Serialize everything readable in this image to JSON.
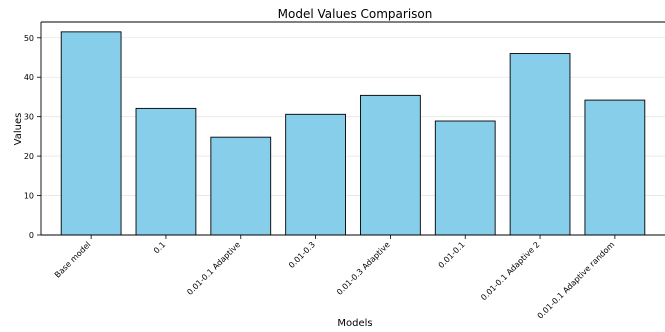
{
  "chart_data": {
    "type": "bar",
    "title": "Model Values Comparison",
    "xlabel": "Models",
    "ylabel": "Values",
    "categories": [
      "Base model",
      "0.1",
      "0.01-0.1 Adaptive",
      "0.01-0.3",
      "0.01-0.3 Adaptive",
      "0.01-0.1",
      "0.01-0.1 Adaptive 2",
      "0.01-0.1 Adaptive random"
    ],
    "values": [
      51.5,
      32.1,
      24.8,
      30.6,
      35.4,
      28.9,
      46.0,
      34.2
    ],
    "ylim": [
      0,
      54
    ],
    "yticks": [
      "0",
      "10",
      "20",
      "30",
      "40",
      "50"
    ],
    "grid": "y-major",
    "legend": "none",
    "colors": {
      "bar_fill": "#87CEEB",
      "bar_edge": "#000000",
      "axis": "#000000",
      "grid": "#e6e6e6"
    }
  }
}
